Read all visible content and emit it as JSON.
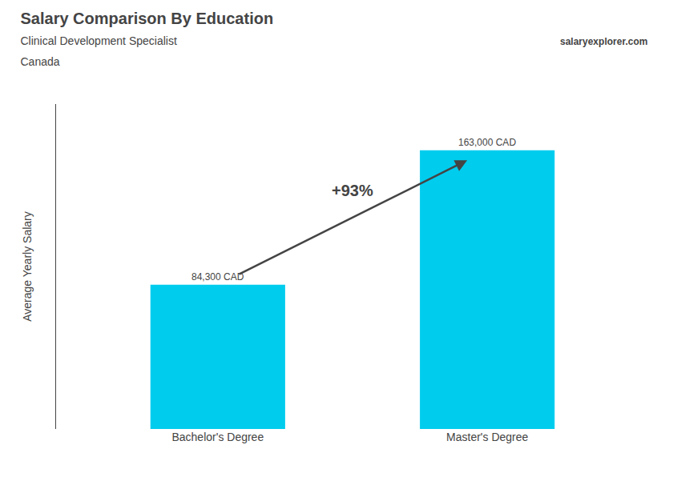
{
  "chart_data": {
    "type": "bar",
    "title": "Salary Comparison By Education",
    "subtitle": [
      "Clinical Development Specialist",
      "Canada"
    ],
    "ylabel": "Average Yearly Salary",
    "categories": [
      "Bachelor's Degree",
      "Master's Degree"
    ],
    "values": [
      84300,
      163000
    ],
    "value_labels": [
      "84,300 CAD",
      "163,000 CAD"
    ],
    "data_labels": true,
    "color": "#00ccee",
    "ylim": [
      0,
      190000
    ],
    "tick_labels": "x",
    "grid": false,
    "annotations": [
      "+93%",
      "salaryexplorer.com"
    ]
  }
}
